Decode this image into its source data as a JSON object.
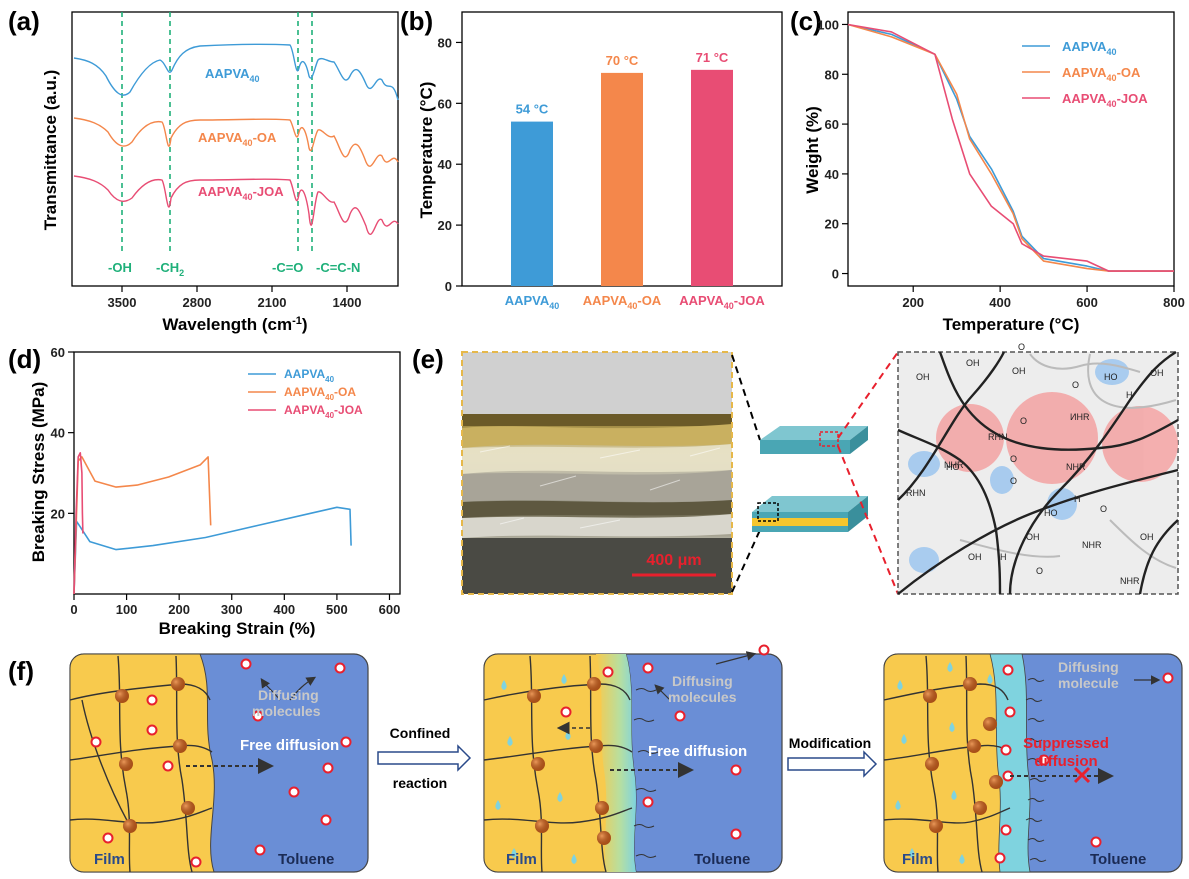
{
  "colors": {
    "blue": "#3e9bd7",
    "orange": "#f4874b",
    "pink": "#e84d74",
    "green": "#1fb07a",
    "yellow": "#f8ca4d",
    "toluene": "#6a8ed6",
    "cyan": "#7fd3df",
    "red": "#e8202d"
  },
  "panels": {
    "a": {
      "label": "(a)",
      "series": [
        "AAPVA",
        "AAPVA",
        "AAPVA"
      ],
      "suffix": [
        "",
        "-OA",
        "-JOA"
      ],
      "sub": "40",
      "peaks": [
        "-OH",
        "-CH",
        "-C=O",
        "-C=C-N"
      ],
      "ch_sub": "2",
      "xlabel": "Wavelength (cm",
      "xlabel_tail": ")",
      "xlabel_sup": "-1",
      "ylabel": "Transmittance (a.u.)",
      "xticks": [
        "3500",
        "2800",
        "2100",
        "1400"
      ]
    },
    "b": {
      "label": "(b)",
      "ylabel": "Temperature (°C)",
      "yticks": [
        "0",
        "20",
        "40",
        "60",
        "80"
      ],
      "bar_labels": [
        "54 °C",
        "70 °C",
        "71 °C"
      ],
      "cat_base": [
        "AAPVA",
        "AAPVA",
        "AAPVA"
      ],
      "cat_sub": "40",
      "cat_suffix": [
        "",
        "-OA",
        "-JOA"
      ]
    },
    "c": {
      "label": "(c)",
      "ylabel": "Weight (%)",
      "xlabel": "Temperature (°C)",
      "xticks": [
        "200",
        "400",
        "600",
        "800"
      ],
      "yticks": [
        "0",
        "20",
        "40",
        "60",
        "80",
        "100"
      ],
      "legend_base": [
        "AAPVA",
        "AAPVA",
        "AAPVA"
      ],
      "legend_sub": "40",
      "legend_suffix": [
        "",
        "-OA",
        "-JOA"
      ]
    },
    "d": {
      "label": "(d)",
      "ylabel": "Breaking Stress (MPa)",
      "xlabel": "Breaking Strain (%)",
      "xticks": [
        "0",
        "100",
        "200",
        "300",
        "400",
        "500",
        "600"
      ],
      "yticks": [
        "20",
        "40",
        "60"
      ],
      "legend_base": [
        "AAPVA",
        "AAPVA",
        "AAPVA"
      ],
      "legend_sub": "40",
      "legend_suffix": [
        "",
        "-OA",
        "-JOA"
      ]
    },
    "e": {
      "label": "(e)",
      "scale": "400 μm",
      "chem": [
        "OH",
        "OH",
        "OH",
        "OH",
        "O",
        "O",
        "NHR",
        "RHN",
        "O",
        "NHR",
        "HO",
        "O",
        "RHN",
        "HO",
        "H",
        "O",
        "OH",
        "OH",
        "H",
        "O",
        "NHR",
        "OH",
        "HO",
        "H",
        "O",
        "NHR",
        "ИНR"
      ]
    },
    "f": {
      "label": "(f)",
      "stage1": {
        "diffusing": "Diffusing\nmolecules",
        "free": "Free diffusion",
        "film": "Film",
        "toluene": "Toluene"
      },
      "arrow1": {
        "top": "Confined",
        "bottom": "reaction"
      },
      "stage2": {
        "diffusing": "Diffusing\nmolecules",
        "free": "Free diffusion",
        "film": "Film",
        "toluene": "Toluene"
      },
      "arrow2": {
        "top": "Modification"
      },
      "stage3": {
        "diffusing": "Diffusing\nmolecule",
        "suppressed": "Suppressed\ndiffusion",
        "film": "Film",
        "toluene": "Toluene"
      }
    }
  },
  "chart_data": [
    {
      "type": "line",
      "panel": "a",
      "xlabel": "Wavelength (cm-1)",
      "ylabel": "Transmittance (a.u.)",
      "xlim": [
        4000,
        400
      ],
      "xticks": [
        3500,
        2800,
        2100,
        1400
      ],
      "series": [
        {
          "name": "AAPVA40"
        },
        {
          "name": "AAPVA40-OA"
        },
        {
          "name": "AAPVA40-JOA"
        }
      ],
      "annotations": [
        {
          "label": "-OH",
          "x": 3300
        },
        {
          "label": "-CH2",
          "x": 2920
        },
        {
          "label": "-C=O",
          "x": 1730
        },
        {
          "label": "-C=C-N",
          "x": 1590
        }
      ]
    },
    {
      "type": "bar",
      "panel": "b",
      "ylabel": "Temperature (°C)",
      "ylim": [
        0,
        90
      ],
      "categories": [
        "AAPVA40",
        "AAPVA40-OA",
        "AAPVA40-JOA"
      ],
      "values": [
        54,
        70,
        71
      ]
    },
    {
      "type": "line",
      "panel": "c",
      "xlabel": "Temperature (°C)",
      "ylabel": "Weight (%)",
      "xlim": [
        50,
        800
      ],
      "ylim": [
        -5,
        105
      ],
      "series": [
        {
          "name": "AAPVA40",
          "x": [
            50,
            150,
            250,
            300,
            330,
            380,
            430,
            450,
            500,
            600,
            650,
            800
          ],
          "y": [
            100,
            96,
            88,
            70,
            55,
            42,
            25,
            15,
            6,
            3,
            1,
            1
          ]
        },
        {
          "name": "AAPVA40-OA",
          "x": [
            50,
            150,
            250,
            300,
            330,
            380,
            430,
            450,
            500,
            600,
            650,
            800
          ],
          "y": [
            100,
            95,
            88,
            72,
            54,
            40,
            24,
            14,
            5,
            2,
            1,
            1
          ]
        },
        {
          "name": "AAPVA40-JOA",
          "x": [
            50,
            150,
            250,
            290,
            330,
            380,
            430,
            450,
            500,
            600,
            650,
            800
          ],
          "y": [
            100,
            97,
            88,
            62,
            40,
            27,
            20,
            12,
            7,
            5,
            1,
            1
          ]
        }
      ]
    },
    {
      "type": "line",
      "panel": "d",
      "xlabel": "Breaking Strain (%)",
      "ylabel": "Breaking Stress (MPa)",
      "xlim": [
        0,
        620
      ],
      "ylim": [
        0,
        60
      ],
      "series": [
        {
          "name": "AAPVA40",
          "x": [
            0,
            5,
            10,
            30,
            80,
            150,
            250,
            350,
            450,
            500,
            525,
            527
          ],
          "y": [
            0,
            18,
            17,
            13,
            11,
            12,
            14,
            17,
            20,
            21.5,
            21,
            12
          ]
        },
        {
          "name": "AAPVA40-OA",
          "x": [
            0,
            8,
            15,
            40,
            80,
            120,
            180,
            240,
            255,
            260
          ],
          "y": [
            0,
            33,
            34,
            28,
            26.5,
            27,
            29,
            32,
            34,
            17
          ]
        },
        {
          "name": "AAPVA40-JOA",
          "x": [
            0,
            4,
            8,
            12,
            15,
            16,
            17
          ],
          "y": [
            0,
            20,
            34,
            35,
            30,
            20,
            15
          ]
        }
      ]
    }
  ]
}
